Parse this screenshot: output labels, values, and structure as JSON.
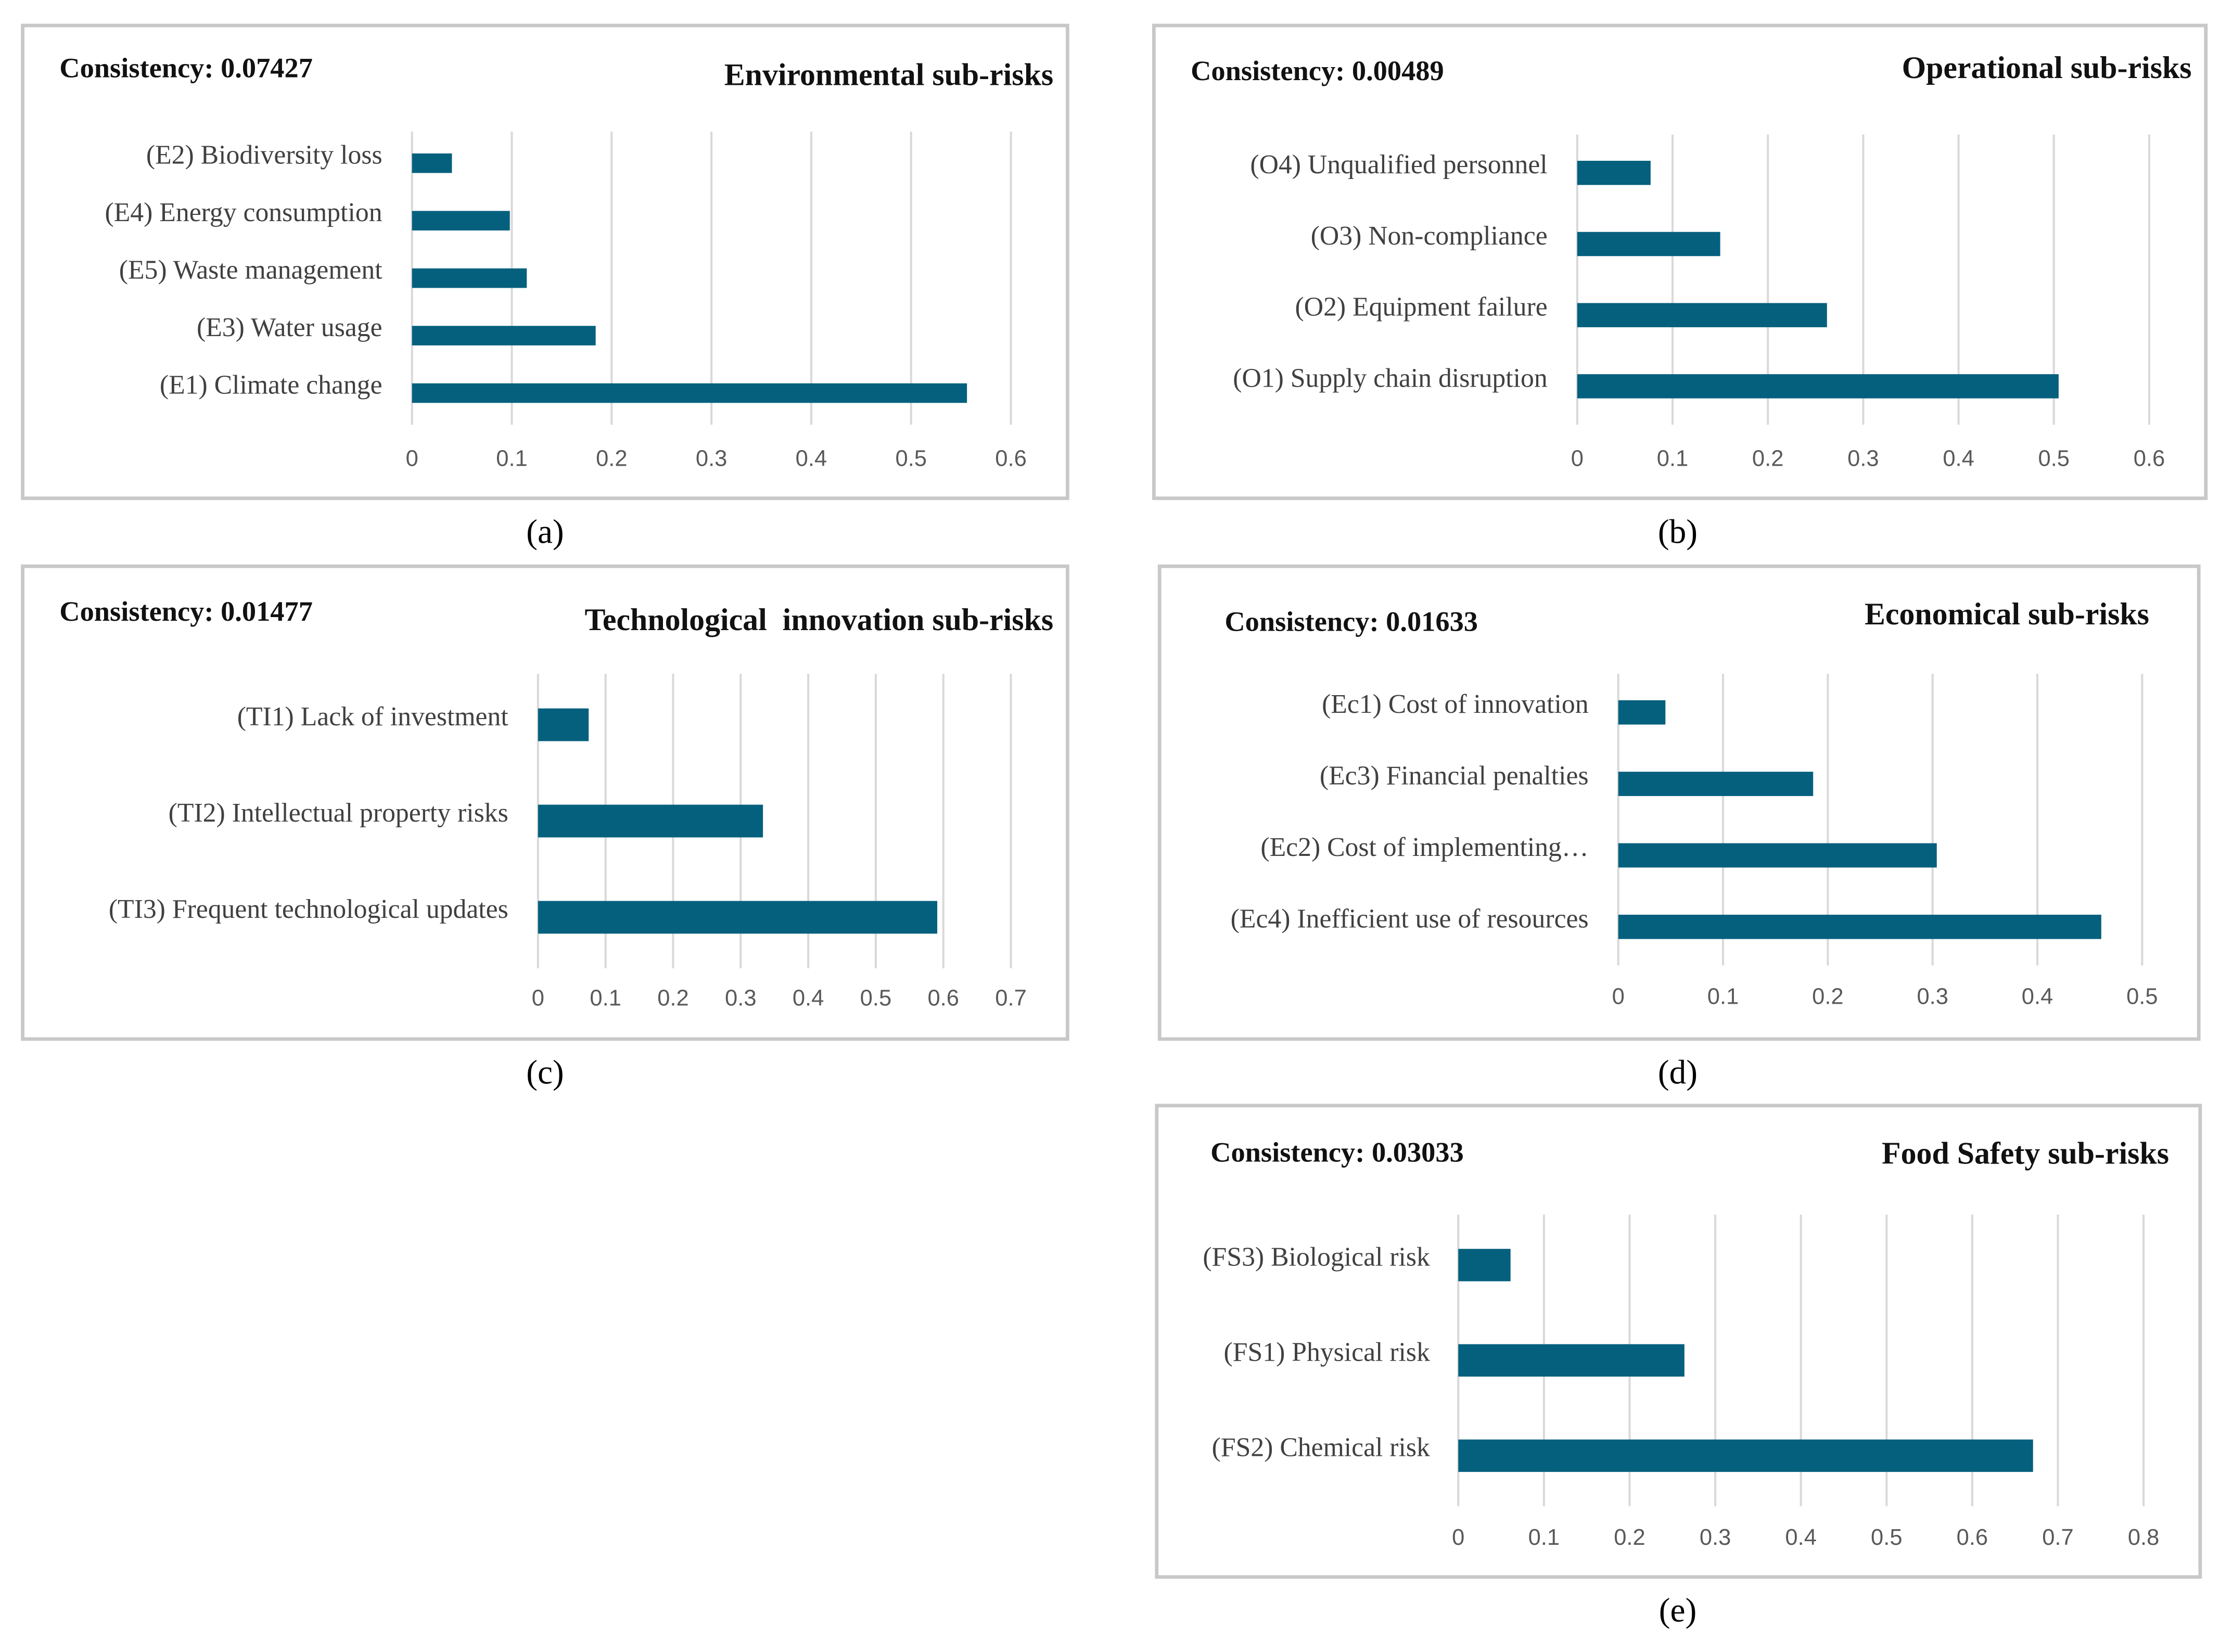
{
  "chart_data": [
    {
      "type": "bar",
      "orientation": "horizontal",
      "title": "Environmental sub-risks",
      "annotation": "Consistency: 0.07427",
      "caption": "(a)",
      "categories": [
        "(E2) Biodiversity loss",
        "(E4) Energy consumption",
        "(E5) Waste management",
        "(E3) Water usage",
        "(E1) Climate change"
      ],
      "values": [
        0.04,
        0.098,
        0.115,
        0.184,
        0.556
      ],
      "color": "#05607e",
      "xlim": [
        0,
        0.6
      ],
      "xticks": [
        0,
        0.1,
        0.2,
        0.3,
        0.4,
        0.5,
        0.6
      ],
      "grid": true
    },
    {
      "type": "bar",
      "orientation": "horizontal",
      "title": "Operational sub-risks",
      "annotation": "Consistency: 0.00489",
      "caption": "(b)",
      "categories": [
        "(O4) Unqualified personnel",
        "(O3) Non-compliance",
        "(O2) Equipment failure",
        "(O1) Supply chain disruption"
      ],
      "values": [
        0.077,
        0.15,
        0.262,
        0.505
      ],
      "color": "#05607e",
      "xlim": [
        0,
        0.6
      ],
      "xticks": [
        0,
        0.1,
        0.2,
        0.3,
        0.4,
        0.5,
        0.6
      ],
      "grid": true
    },
    {
      "type": "bar",
      "orientation": "horizontal",
      "title": "Technological  innovation sub-risks",
      "annotation": "Consistency: 0.01477",
      "caption": "(c)",
      "categories": [
        "(TI1) Lack of investment",
        "(TI2) Intellectual property risks",
        "(TI3) Frequent technological updates"
      ],
      "values": [
        0.075,
        0.333,
        0.591
      ],
      "color": "#05607e",
      "xlim": [
        0,
        0.7
      ],
      "xticks": [
        0,
        0.1,
        0.2,
        0.3,
        0.4,
        0.5,
        0.6,
        0.7
      ],
      "grid": true
    },
    {
      "type": "bar",
      "orientation": "horizontal",
      "title": "Economical sub-risks",
      "annotation": "Consistency: 0.01633",
      "caption": "(d)",
      "categories": [
        "(Ec1) Cost of innovation",
        "(Ec3) Financial penalties",
        "(Ec2) Cost of implementing…",
        "(Ec4) Inefficient use of resources"
      ],
      "values": [
        0.045,
        0.186,
        0.304,
        0.461
      ],
      "color": "#05607e",
      "xlim": [
        0,
        0.5
      ],
      "xticks": [
        0,
        0.1,
        0.2,
        0.3,
        0.4,
        0.5
      ],
      "grid": true
    },
    {
      "type": "bar",
      "orientation": "horizontal",
      "title": "Food Safety sub-risks",
      "annotation": "Consistency: 0.03033",
      "caption": "(e)",
      "categories": [
        "(FS3) Biological risk",
        "(FS1) Physical risk",
        "(FS2) Chemical risk"
      ],
      "values": [
        0.061,
        0.264,
        0.671
      ],
      "color": "#05607e",
      "xlim": [
        0,
        0.8
      ],
      "xticks": [
        0,
        0.1,
        0.2,
        0.3,
        0.4,
        0.5,
        0.6,
        0.7,
        0.8
      ],
      "grid": true
    }
  ]
}
